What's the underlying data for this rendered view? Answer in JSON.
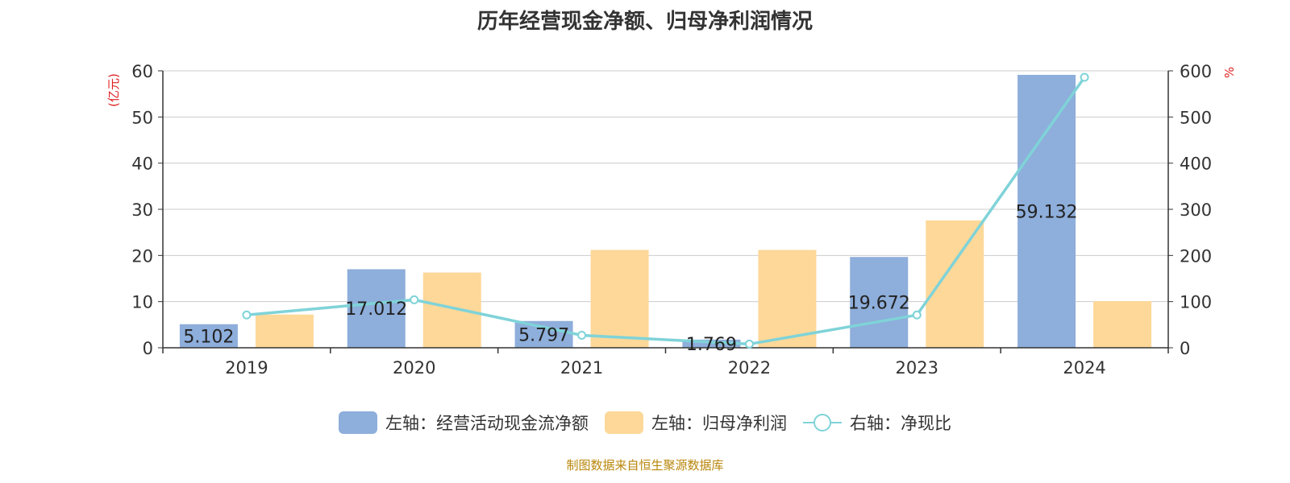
{
  "chart_data": {
    "type": "bar",
    "title": "历年经营现金净额、归母净利润情况",
    "categories": [
      "2019",
      "2020",
      "2021",
      "2022",
      "2023",
      "2024"
    ],
    "left_axis": {
      "unit": "(亿元)",
      "ylim": [
        0,
        60
      ],
      "ticks": [
        0,
        10,
        20,
        30,
        40,
        50,
        60
      ]
    },
    "right_axis": {
      "unit": "%",
      "ylim": [
        0,
        600
      ],
      "ticks": [
        0,
        100,
        200,
        300,
        400,
        500,
        600
      ]
    },
    "series": [
      {
        "name": "左轴：经营活动现金流净额",
        "type": "bar",
        "axis": "left",
        "color": "#8eaedb",
        "values": [
          5.102,
          17.012,
          5.797,
          1.769,
          19.672,
          59.132
        ],
        "labels": [
          "5.102",
          "17.012",
          "5.797",
          "1.769",
          "19.672",
          "59.132"
        ]
      },
      {
        "name": "左轴：归母净利润",
        "type": "bar",
        "axis": "left",
        "color": "#fdd899",
        "values": [
          7.2,
          16.3,
          21.2,
          21.2,
          27.6,
          10.1
        ]
      },
      {
        "name": "右轴：净现比",
        "type": "line",
        "axis": "right",
        "color": "#7fd3d8",
        "values": [
          71,
          104,
          27,
          8,
          71,
          586
        ]
      }
    ],
    "grid": true,
    "legend_position": "bottom"
  },
  "footer": "制图数据来自恒生聚源数据库"
}
